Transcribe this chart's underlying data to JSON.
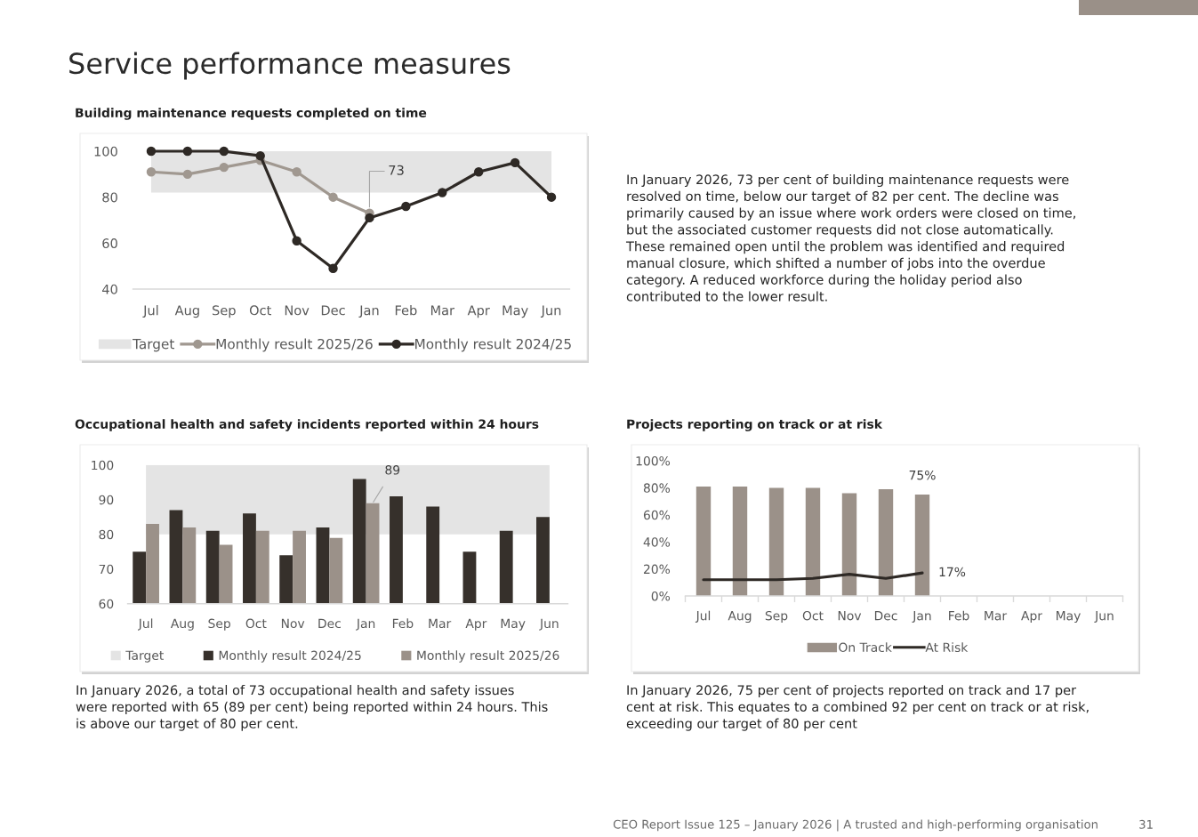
{
  "chart_data": [
    {
      "type": "other",
      "title": "Service performance measures",
      "annotations": [
        "CEO Report Issue 125 – January 2026 | A trusted and high-performing organisation",
        "31"
      ]
    },
    {
      "type": "line",
      "title": "Building maintenance requests completed on time",
      "categories": [
        "Jul",
        "Aug",
        "Sep",
        "Oct",
        "Nov",
        "Dec",
        "Jan",
        "Feb",
        "Mar",
        "Apr",
        "May",
        "Jun"
      ],
      "series": [
        {
          "name": "Monthly result 2025/26",
          "color": "#a09890",
          "values": [
            91,
            90,
            93,
            96,
            91,
            80,
            73,
            null,
            null,
            null,
            null,
            null
          ],
          "value_labels": [
            null,
            null,
            null,
            null,
            null,
            null,
            "73",
            null,
            null,
            null,
            null,
            null
          ]
        },
        {
          "name": "Monthly result 2024/25",
          "color": "#2e2925",
          "values": [
            100,
            100,
            100,
            98,
            61,
            49,
            71,
            76,
            82,
            91,
            95,
            80
          ]
        }
      ],
      "bands": [
        {
          "axis": "y",
          "from": 82,
          "to": 100,
          "label": "Target",
          "color": "#e4e4e4"
        }
      ],
      "ylim": [
        40,
        100
      ],
      "yticks": [
        40,
        60,
        80,
        100
      ],
      "marker": "circle",
      "legend": "bottom",
      "annotations": [
        "In January 2026, 73 per cent of building maintenance requests were\nresolved on time, below our target of 82 per cent. The decline was\nprimarily caused by an issue where work orders were closed on time,\nbut the associated customer requests did not close automatically.\nThese remained open until the problem was identified and required\nmanual closure, which shifted a number of jobs into the overdue\ncategory. A reduced workforce during the holiday period also\ncontributed to the lower result."
      ]
    },
    {
      "type": "bar",
      "title": "Occupational health and safety incidents reported within 24 hours",
      "categories": [
        "Jul",
        "Aug",
        "Sep",
        "Oct",
        "Nov",
        "Dec",
        "Jan",
        "Feb",
        "Mar",
        "Apr",
        "May",
        "Jun"
      ],
      "series": [
        {
          "name": "Monthly result 2024/25",
          "color": "#36302b",
          "values": [
            75,
            87,
            81,
            86,
            74,
            82,
            96,
            91,
            88,
            75,
            81,
            85
          ]
        },
        {
          "name": "Monthly result 2025/26",
          "color": "#9b9189",
          "values": [
            83,
            82,
            77,
            81,
            81,
            79,
            89,
            null,
            null,
            null,
            null,
            null
          ],
          "value_labels": [
            null,
            null,
            null,
            null,
            null,
            null,
            "89",
            null,
            null,
            null,
            null,
            null
          ]
        }
      ],
      "bands": [
        {
          "axis": "y",
          "from": 80,
          "to": 100,
          "label": "Target",
          "color": "#e4e4e4"
        }
      ],
      "ylim": [
        60,
        100
      ],
      "yticks": [
        60,
        70,
        80,
        90,
        100
      ],
      "legend": "bottom",
      "annotations": [
        "In January 2026, a total of 73 occupational health and safety issues\nwere reported with 65 (89 per cent) being reported within 24 hours. This\nis above our target of 80 per cent."
      ]
    },
    {
      "type": "bar",
      "title": "Projects reporting on track or at risk",
      "categories": [
        "Jul",
        "Aug",
        "Sep",
        "Oct",
        "Nov",
        "Dec",
        "Jan",
        "Feb",
        "Mar",
        "Apr",
        "May",
        "Jun"
      ],
      "series": [
        {
          "name": "On Track",
          "color": "#9b9189",
          "values": [
            81,
            81,
            80,
            80,
            76,
            79,
            75,
            null,
            null,
            null,
            null,
            null
          ],
          "value_labels": [
            null,
            null,
            null,
            null,
            null,
            null,
            "75%",
            null,
            null,
            null,
            null,
            null
          ]
        },
        {
          "name": "At Risk",
          "type": "line",
          "color": "#2e2925",
          "values": [
            12,
            12,
            12,
            13,
            16,
            13,
            17,
            null,
            null,
            null,
            null,
            null
          ],
          "value_labels": [
            null,
            null,
            null,
            null,
            null,
            null,
            "17%",
            null,
            null,
            null,
            null,
            null
          ]
        }
      ],
      "ylim": [
        0,
        100
      ],
      "yticks": [
        {
          "value": 0,
          "label": "0%"
        },
        {
          "value": 20,
          "label": "20%"
        },
        {
          "value": 40,
          "label": "40%"
        },
        {
          "value": 60,
          "label": "60%"
        },
        {
          "value": 80,
          "label": "80%"
        },
        {
          "value": 100,
          "label": "100%"
        }
      ],
      "legend": "bottom",
      "annotations": [
        "In January 2026, 75 per cent of projects reported on track and 17 per\ncent at risk. This equates to a combined 92 per cent on track or at risk,\nexceeding our target of 80 per cent"
      ]
    }
  ]
}
